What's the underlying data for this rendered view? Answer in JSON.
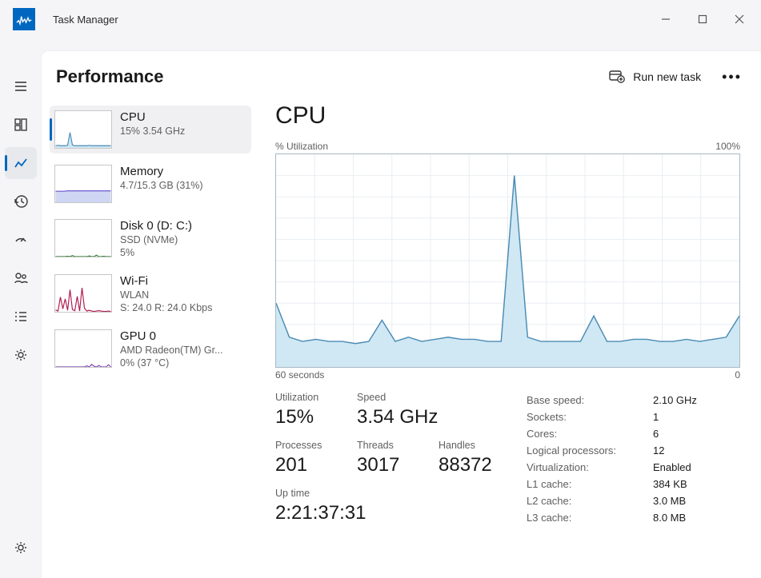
{
  "window": {
    "title": "Task Manager"
  },
  "header": {
    "page_title": "Performance",
    "run_task_label": "Run new task"
  },
  "sidebar_thumbs": {
    "cpu": {
      "title": "CPU",
      "sub": "15%  3.54 GHz",
      "stroke": "#4a8bb3",
      "fill": "#cfe8f4",
      "points": [
        6,
        7,
        6,
        6,
        6,
        7,
        42,
        8,
        6,
        6,
        6,
        6,
        6,
        6,
        7,
        6,
        6,
        6,
        6,
        6,
        6,
        6,
        6,
        6
      ]
    },
    "memory": {
      "title": "Memory",
      "sub": "4.7/15.3 GB (31%)",
      "stroke": "#6a5acd",
      "fill": "#cfd6f4",
      "points": [
        30,
        30,
        30,
        30,
        31,
        31,
        31,
        31,
        31,
        31,
        31,
        31,
        31,
        31,
        31,
        31,
        31,
        31,
        31,
        31
      ]
    },
    "disk": {
      "title": "Disk 0 (D: C:)",
      "sub1": "SSD (NVMe)",
      "sub2": "5%",
      "stroke": "#2e7d32",
      "fill": "rgba(0,0,0,0)",
      "points": [
        0,
        0,
        0,
        0,
        0,
        1,
        0,
        3,
        0,
        0,
        0,
        0,
        0,
        0,
        2,
        0,
        0,
        4,
        0,
        0,
        1,
        0,
        0,
        0
      ]
    },
    "wifi": {
      "title": "Wi-Fi",
      "sub1": "WLAN",
      "sub2": "S: 24.0 R: 24.0 Kbps",
      "stroke": "#b0184f",
      "fill": "rgba(0,0,0,0)",
      "points": [
        5,
        2,
        40,
        8,
        35,
        4,
        60,
        6,
        3,
        42,
        2,
        65,
        10,
        2,
        4,
        2,
        1,
        2,
        3,
        2,
        1,
        1,
        2,
        1
      ]
    },
    "gpu": {
      "title": "GPU 0",
      "sub1": "AMD Radeon(TM) Gr...",
      "sub2": "0%  (37 °C)",
      "stroke": "#7b3fb5",
      "fill": "rgba(0,0,0,0)",
      "points": [
        0,
        0,
        0,
        0,
        0,
        0,
        0,
        0,
        0,
        0,
        0,
        0,
        0,
        3,
        0,
        7,
        2,
        0,
        4,
        0,
        0,
        0,
        6,
        0
      ]
    }
  },
  "detail": {
    "title": "CPU",
    "y_label": "% Utilization",
    "y_max": "100%",
    "x_left": "60 seconds",
    "x_right": "0",
    "chart": {
      "stroke": "#4a8bb3",
      "fill": "#cfe8f4",
      "grid": "#e9eef2",
      "values": [
        30,
        14,
        12,
        13,
        12,
        12,
        11,
        12,
        22,
        12,
        14,
        12,
        13,
        14,
        13,
        13,
        12,
        12,
        90,
        14,
        12,
        12,
        12,
        12,
        24,
        12,
        12,
        13,
        13,
        12,
        12,
        13,
        12,
        13,
        14,
        24
      ]
    },
    "stats": {
      "utilization_label": "Utilization",
      "utilization": "15%",
      "speed_label": "Speed",
      "speed": "3.54 GHz",
      "processes_label": "Processes",
      "processes": "201",
      "threads_label": "Threads",
      "threads": "3017",
      "handles_label": "Handles",
      "handles": "88372",
      "uptime_label": "Up time",
      "uptime": "2:21:37:31"
    },
    "specs": [
      {
        "k": "Base speed:",
        "v": "2.10 GHz"
      },
      {
        "k": "Sockets:",
        "v": "1"
      },
      {
        "k": "Cores:",
        "v": "6"
      },
      {
        "k": "Logical processors:",
        "v": "12"
      },
      {
        "k": "Virtualization:",
        "v": "Enabled"
      },
      {
        "k": "L1 cache:",
        "v": "384 KB"
      },
      {
        "k": "L2 cache:",
        "v": "3.0 MB"
      },
      {
        "k": "L3 cache:",
        "v": "8.0 MB"
      }
    ]
  }
}
